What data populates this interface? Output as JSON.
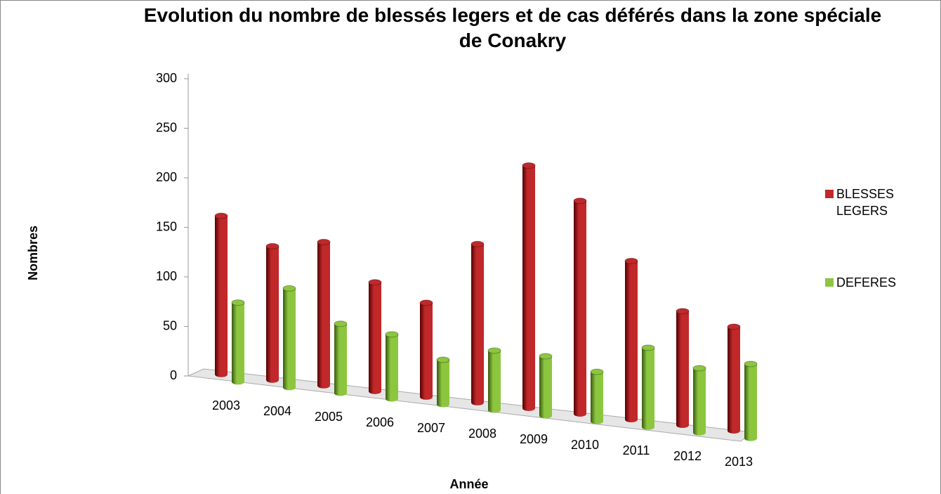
{
  "chart_data": {
    "type": "bar3d",
    "title": "Evolution du nombre de blessés legers et de cas  déférés dans la zone spéciale de Conakry",
    "x_label": "Année",
    "y_label": "Nombres",
    "categories": [
      "2003",
      "2004",
      "2005",
      "2006",
      "2007",
      "2008",
      "2009",
      "2010",
      "2011",
      "2012",
      "2013"
    ],
    "series": [
      {
        "name": "BLESSES LEGERS",
        "color": "#c0282a",
        "values": [
          160,
          135,
          145,
          110,
          95,
          160,
          245,
          215,
          160,
          115,
          105
        ]
      },
      {
        "name": "DEFERES",
        "color": "#8cc63f",
        "values": [
          80,
          100,
          70,
          65,
          45,
          60,
          60,
          50,
          80,
          65,
          75
        ]
      }
    ],
    "ylim": [
      0,
      300
    ],
    "yticks": [
      0,
      50,
      100,
      150,
      200,
      250,
      300
    ],
    "legend": "right"
  }
}
